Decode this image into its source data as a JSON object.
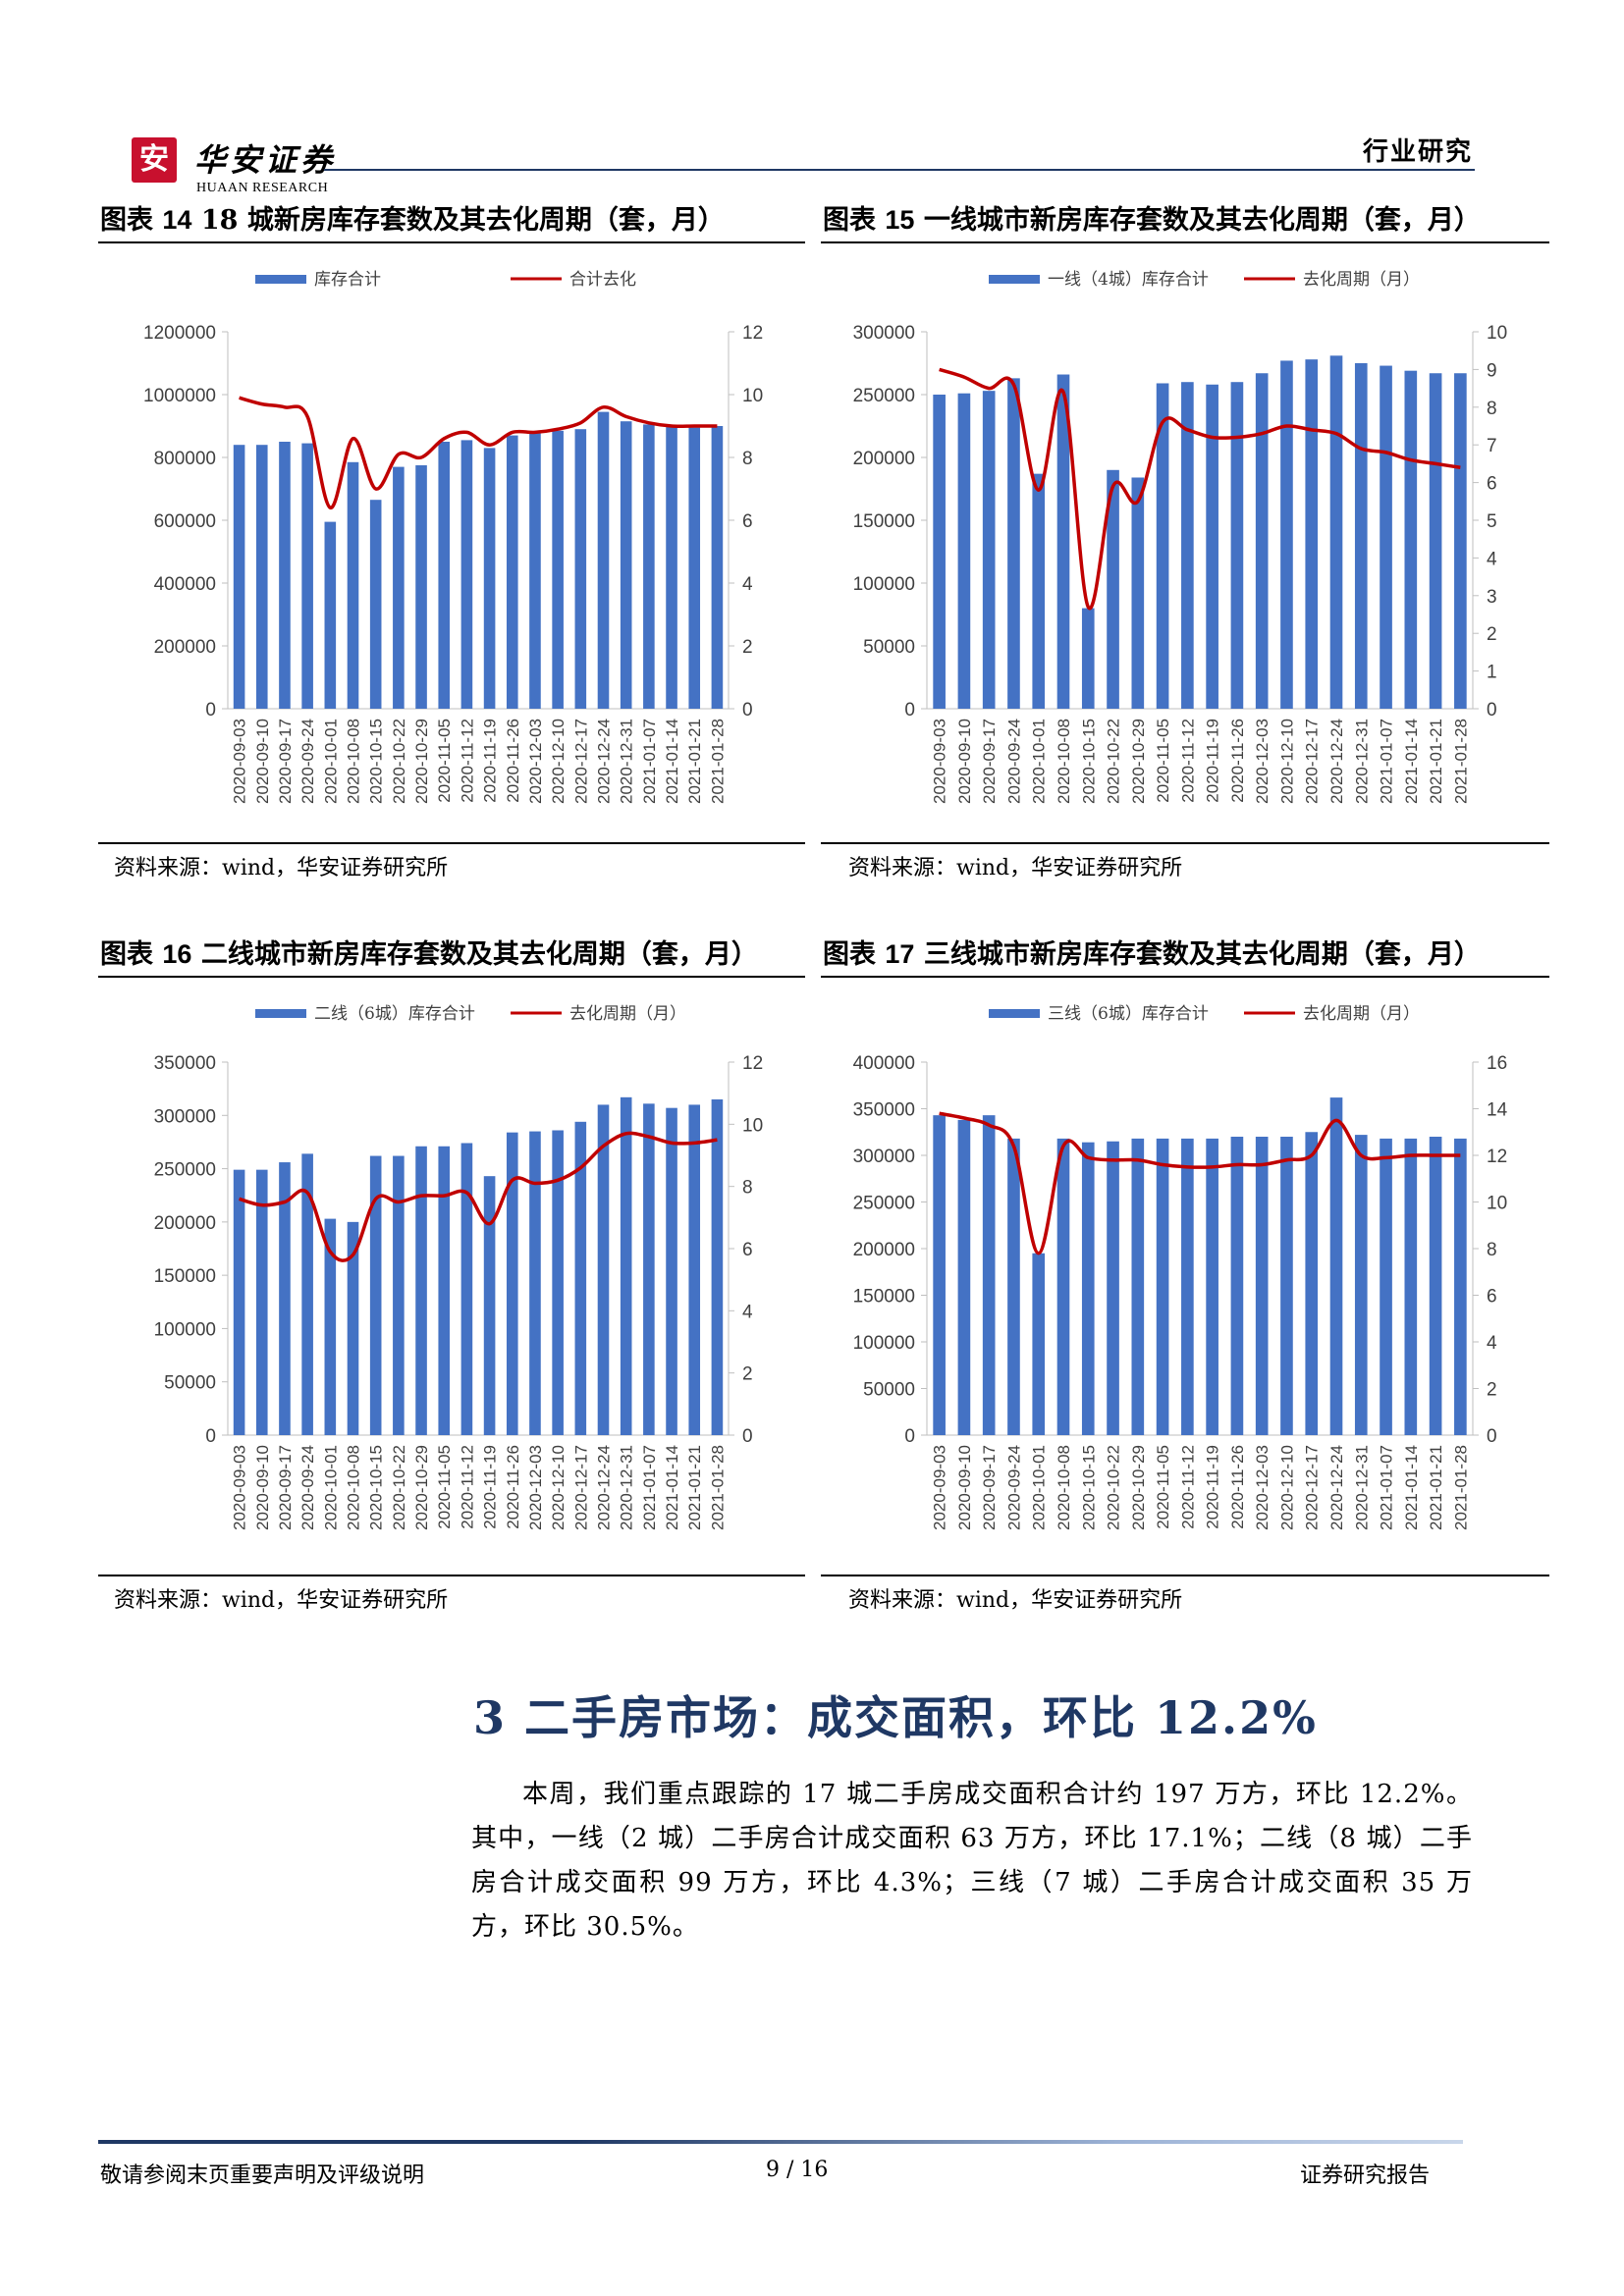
{
  "header": {
    "logo_mark": "安",
    "logo_cn": "华安证券",
    "logo_en": "HUAAN RESEARCH",
    "right_label": "行业研究"
  },
  "figures": [
    {
      "prefix": "图表",
      "number": "14",
      "title": "18 城新房库存套数及其去化周期（套，月）",
      "source": "资料来源：wind，华安证券研究所"
    },
    {
      "prefix": "图表",
      "number": "15",
      "title": "一线城市新房库存套数及其去化周期（套，月）",
      "source": "资料来源：wind，华安证券研究所"
    },
    {
      "prefix": "图表",
      "number": "16",
      "title": "二线城市新房库存套数及其去化周期（套，月）",
      "source": "资料来源：wind，华安证券研究所"
    },
    {
      "prefix": "图表",
      "number": "17",
      "title": "三线城市新房库存套数及其去化周期（套，月）",
      "source": "资料来源：wind，华安证券研究所"
    }
  ],
  "chart_data": [
    {
      "type": "bar+line",
      "categories": [
        "2020-09-03",
        "2020-09-10",
        "2020-09-17",
        "2020-09-24",
        "2020-10-01",
        "2020-10-08",
        "2020-10-15",
        "2020-10-22",
        "2020-10-29",
        "2020-11-05",
        "2020-11-12",
        "2020-11-19",
        "2020-11-26",
        "2020-12-03",
        "2020-12-10",
        "2020-12-17",
        "2020-12-24",
        "2020-12-31",
        "2021-01-07",
        "2021-01-14",
        "2021-01-21",
        "2021-01-28"
      ],
      "bar_series": {
        "name": "库存合计",
        "values": [
          840000,
          840000,
          850000,
          845000,
          595000,
          785000,
          665000,
          770000,
          775000,
          850000,
          855000,
          830000,
          870000,
          880000,
          885000,
          890000,
          945000,
          915000,
          905000,
          900000,
          895000,
          900000
        ]
      },
      "line_series": {
        "name": "合计去化",
        "values": [
          9.9,
          9.7,
          9.6,
          9.3,
          6.4,
          8.6,
          7.0,
          8.1,
          8.0,
          8.6,
          8.8,
          8.4,
          8.8,
          8.8,
          8.9,
          9.1,
          9.6,
          9.3,
          9.1,
          9.0,
          9.0,
          9.0
        ]
      },
      "y_left": {
        "min": 0,
        "max": 1200000,
        "ticks": [
          0,
          200000,
          400000,
          600000,
          800000,
          1000000,
          1200000
        ]
      },
      "y_right": {
        "min": 0,
        "max": 12,
        "ticks": [
          0,
          2,
          4,
          6,
          8,
          10,
          12
        ]
      },
      "legend": "top",
      "colors": {
        "bar": "#4472c4",
        "line": "#c00000"
      }
    },
    {
      "type": "bar+line",
      "categories": [
        "2020-09-03",
        "2020-09-10",
        "2020-09-17",
        "2020-09-24",
        "2020-10-01",
        "2020-10-08",
        "2020-10-15",
        "2020-10-22",
        "2020-10-29",
        "2020-11-05",
        "2020-11-12",
        "2020-11-19",
        "2020-11-26",
        "2020-12-03",
        "2020-12-10",
        "2020-12-17",
        "2020-12-24",
        "2020-12-31",
        "2021-01-07",
        "2021-01-14",
        "2021-01-21",
        "2021-01-28"
      ],
      "bar_series": {
        "name": "一线（4城）库存合计",
        "values": [
          250000,
          251000,
          253000,
          263000,
          187000,
          266000,
          80000,
          190000,
          184000,
          259000,
          260000,
          258000,
          260000,
          267000,
          277000,
          278000,
          281000,
          275000,
          273000,
          269000,
          267000,
          267000
        ]
      },
      "line_series": {
        "name": "去化周期（月）",
        "values": [
          9.0,
          8.8,
          8.5,
          8.6,
          5.8,
          8.4,
          2.7,
          5.9,
          5.5,
          7.6,
          7.4,
          7.2,
          7.2,
          7.3,
          7.5,
          7.4,
          7.3,
          6.9,
          6.8,
          6.6,
          6.5,
          6.4
        ]
      },
      "y_left": {
        "min": 0,
        "max": 300000,
        "ticks": [
          0,
          50000,
          100000,
          150000,
          200000,
          250000,
          300000
        ]
      },
      "y_right": {
        "min": 0,
        "max": 10,
        "ticks": [
          0,
          1,
          2,
          3,
          4,
          5,
          6,
          7,
          8,
          9,
          10
        ]
      },
      "legend": "top",
      "colors": {
        "bar": "#4472c4",
        "line": "#c00000"
      }
    },
    {
      "type": "bar+line",
      "categories": [
        "2020-09-03",
        "2020-09-10",
        "2020-09-17",
        "2020-09-24",
        "2020-10-01",
        "2020-10-08",
        "2020-10-15",
        "2020-10-22",
        "2020-10-29",
        "2020-11-05",
        "2020-11-12",
        "2020-11-19",
        "2020-11-26",
        "2020-12-03",
        "2020-12-10",
        "2020-12-17",
        "2020-12-24",
        "2020-12-31",
        "2021-01-07",
        "2021-01-14",
        "2021-01-21",
        "2021-01-28"
      ],
      "bar_series": {
        "name": "二线（6城）库存合计",
        "values": [
          249000,
          249000,
          256000,
          264000,
          203000,
          200000,
          262000,
          262000,
          271000,
          271000,
          274000,
          243000,
          284000,
          285000,
          286000,
          294000,
          310000,
          317000,
          311000,
          307000,
          310000,
          315000
        ]
      },
      "line_series": {
        "name": "去化周期（月）",
        "values": [
          7.6,
          7.4,
          7.5,
          7.8,
          5.9,
          5.8,
          7.6,
          7.5,
          7.7,
          7.7,
          7.8,
          6.8,
          8.2,
          8.1,
          8.2,
          8.6,
          9.3,
          9.7,
          9.6,
          9.4,
          9.4,
          9.5
        ]
      },
      "y_left": {
        "min": 0,
        "max": 350000,
        "ticks": [
          0,
          50000,
          100000,
          150000,
          200000,
          250000,
          300000,
          350000
        ]
      },
      "y_right": {
        "min": 0,
        "max": 12,
        "ticks": [
          0,
          2,
          4,
          6,
          8,
          10,
          12
        ]
      },
      "legend": "top",
      "colors": {
        "bar": "#4472c4",
        "line": "#c00000"
      }
    },
    {
      "type": "bar+line",
      "categories": [
        "2020-09-03",
        "2020-09-10",
        "2020-09-17",
        "2020-09-24",
        "2020-10-01",
        "2020-10-08",
        "2020-10-15",
        "2020-10-22",
        "2020-10-29",
        "2020-11-05",
        "2020-11-12",
        "2020-11-19",
        "2020-11-26",
        "2020-12-03",
        "2020-12-10",
        "2020-12-17",
        "2020-12-24",
        "2020-12-31",
        "2021-01-07",
        "2021-01-14",
        "2021-01-21",
        "2021-01-28"
      ],
      "bar_series": {
        "name": "三线（6城）库存合计",
        "values": [
          343000,
          338000,
          343000,
          318000,
          195000,
          318000,
          314000,
          315000,
          318000,
          318000,
          318000,
          318000,
          320000,
          320000,
          320000,
          325000,
          362000,
          322000,
          318000,
          318000,
          320000,
          318000
        ]
      },
      "line_series": {
        "name": "去化周期（月）",
        "values": [
          13.8,
          13.6,
          13.3,
          12.4,
          7.8,
          12.4,
          11.9,
          11.8,
          11.8,
          11.6,
          11.5,
          11.5,
          11.6,
          11.6,
          11.8,
          12.0,
          13.5,
          12.0,
          11.9,
          12.0,
          12.0,
          12.0
        ]
      },
      "y_left": {
        "min": 0,
        "max": 400000,
        "ticks": [
          0,
          50000,
          100000,
          150000,
          200000,
          250000,
          300000,
          350000,
          400000
        ]
      },
      "y_right": {
        "min": 0,
        "max": 16,
        "ticks": [
          0,
          2,
          4,
          6,
          8,
          10,
          12,
          14,
          16
        ]
      },
      "legend": "top",
      "colors": {
        "bar": "#4472c4",
        "line": "#c00000"
      }
    }
  ],
  "section": {
    "heading": "3 二手房市场：成交面积，环比 12.2%"
  },
  "paragraph": "本周，我们重点跟踪的 17 城二手房成交面积合计约 197 万方，环比 12.2%。其中，一线（2 城）二手房合计成交面积 63 万方，环比 17.1%；二线（8 城）二手房合计成交面积 99 万方，环比 4.3%；三线（7 城）二手房合计成交面积 35 万方，环比 30.5%。",
  "footer": {
    "left": "敬请参阅末页重要声明及评级说明",
    "center": "9 / 16",
    "right": "证券研究报告"
  }
}
